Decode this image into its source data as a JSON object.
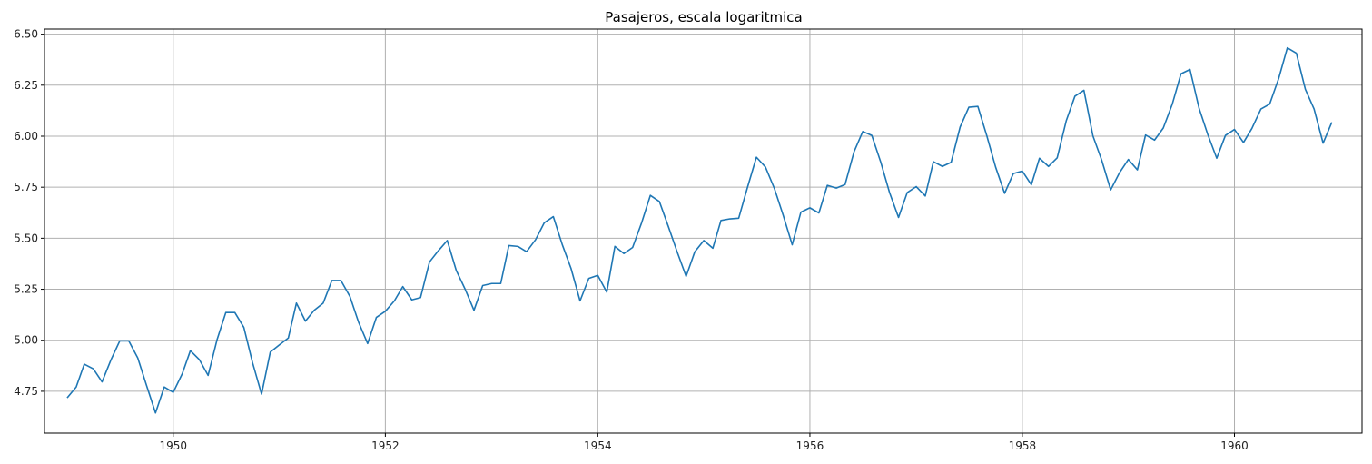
{
  "chart_data": {
    "type": "line",
    "title": "Pasajeros, escala logaritmica",
    "xlabel": "",
    "ylabel": "",
    "xlim": [
      "1948-10-15",
      "1961-03-15"
    ],
    "ylim": [
      4.545,
      6.525
    ],
    "x_ticks": [
      {
        "value": "1950-01-01",
        "label": "1950"
      },
      {
        "value": "1952-01-01",
        "label": "1952"
      },
      {
        "value": "1954-01-01",
        "label": "1954"
      },
      {
        "value": "1956-01-01",
        "label": "1956"
      },
      {
        "value": "1958-01-01",
        "label": "1958"
      },
      {
        "value": "1960-01-01",
        "label": "1960"
      }
    ],
    "y_ticks": [
      {
        "value": 4.75,
        "label": "4.75"
      },
      {
        "value": 5.0,
        "label": "5.00"
      },
      {
        "value": 5.25,
        "label": "5.25"
      },
      {
        "value": 5.5,
        "label": "5.50"
      },
      {
        "value": 5.75,
        "label": "5.75"
      },
      {
        "value": 6.0,
        "label": "6.00"
      },
      {
        "value": 6.25,
        "label": "6.25"
      },
      {
        "value": 6.5,
        "label": "6.50"
      }
    ],
    "grid": true,
    "line_color": "#1f77b4",
    "series": [
      {
        "x": [
          "1949-01-01",
          "1949-02-01",
          "1949-03-01",
          "1949-04-01",
          "1949-05-01",
          "1949-06-01",
          "1949-07-01",
          "1949-08-01",
          "1949-09-01",
          "1949-10-01",
          "1949-11-01",
          "1949-12-01",
          "1950-01-01",
          "1950-02-01",
          "1950-03-01",
          "1950-04-01",
          "1950-05-01",
          "1950-06-01",
          "1950-07-01",
          "1950-08-01",
          "1950-09-01",
          "1950-10-01",
          "1950-11-01",
          "1950-12-01",
          "1951-01-01",
          "1951-02-01",
          "1951-03-01",
          "1951-04-01",
          "1951-05-01",
          "1951-06-01",
          "1951-07-01",
          "1951-08-01",
          "1951-09-01",
          "1951-10-01",
          "1951-11-01",
          "1951-12-01",
          "1952-01-01",
          "1952-02-01",
          "1952-03-01",
          "1952-04-01",
          "1952-05-01",
          "1952-06-01",
          "1952-07-01",
          "1952-08-01",
          "1952-09-01",
          "1952-10-01",
          "1952-11-01",
          "1952-12-01",
          "1953-01-01",
          "1953-02-01",
          "1953-03-01",
          "1953-04-01",
          "1953-05-01",
          "1953-06-01",
          "1953-07-01",
          "1953-08-01",
          "1953-09-01",
          "1953-10-01",
          "1953-11-01",
          "1953-12-01",
          "1954-01-01",
          "1954-02-01",
          "1954-03-01",
          "1954-04-01",
          "1954-05-01",
          "1954-06-01",
          "1954-07-01",
          "1954-08-01",
          "1954-09-01",
          "1954-10-01",
          "1954-11-01",
          "1954-12-01",
          "1955-01-01",
          "1955-02-01",
          "1955-03-01",
          "1955-04-01",
          "1955-05-01",
          "1955-06-01",
          "1955-07-01",
          "1955-08-01",
          "1955-09-01",
          "1955-10-01",
          "1955-11-01",
          "1955-12-01",
          "1956-01-01",
          "1956-02-01",
          "1956-03-01",
          "1956-04-01",
          "1956-05-01",
          "1956-06-01",
          "1956-07-01",
          "1956-08-01",
          "1956-09-01",
          "1956-10-01",
          "1956-11-01",
          "1956-12-01",
          "1957-01-01",
          "1957-02-01",
          "1957-03-01",
          "1957-04-01",
          "1957-05-01",
          "1957-06-01",
          "1957-07-01",
          "1957-08-01",
          "1957-09-01",
          "1957-10-01",
          "1957-11-01",
          "1957-12-01",
          "1958-01-01",
          "1958-02-01",
          "1958-03-01",
          "1958-04-01",
          "1958-05-01",
          "1958-06-01",
          "1958-07-01",
          "1958-08-01",
          "1958-09-01",
          "1958-10-01",
          "1958-11-01",
          "1958-12-01",
          "1959-01-01",
          "1959-02-01",
          "1959-03-01",
          "1959-04-01",
          "1959-05-01",
          "1959-06-01",
          "1959-07-01",
          "1959-08-01",
          "1959-09-01",
          "1959-10-01",
          "1959-11-01",
          "1959-12-01",
          "1960-01-01",
          "1960-02-01",
          "1960-03-01",
          "1960-04-01",
          "1960-05-01",
          "1960-06-01",
          "1960-07-01",
          "1960-08-01",
          "1960-09-01",
          "1960-10-01",
          "1960-11-01",
          "1960-12-01"
        ],
        "y": [
          4.718,
          4.771,
          4.883,
          4.86,
          4.796,
          4.905,
          4.997,
          4.997,
          4.913,
          4.779,
          4.644,
          4.771,
          4.745,
          4.836,
          4.949,
          4.905,
          4.828,
          5.004,
          5.136,
          5.136,
          5.063,
          4.89,
          4.736,
          4.942,
          4.977,
          5.011,
          5.182,
          5.094,
          5.147,
          5.182,
          5.293,
          5.293,
          5.215,
          5.088,
          4.984,
          5.112,
          5.142,
          5.193,
          5.263,
          5.198,
          5.209,
          5.384,
          5.438,
          5.489,
          5.342,
          5.252,
          5.147,
          5.268,
          5.278,
          5.278,
          5.464,
          5.46,
          5.434,
          5.493,
          5.576,
          5.606,
          5.468,
          5.352,
          5.193,
          5.303,
          5.318,
          5.236,
          5.46,
          5.425,
          5.455,
          5.576,
          5.71,
          5.68,
          5.557,
          5.434,
          5.313,
          5.434,
          5.489,
          5.451,
          5.587,
          5.595,
          5.598,
          5.753,
          5.897,
          5.849,
          5.743,
          5.613,
          5.468,
          5.628,
          5.649,
          5.624,
          5.759,
          5.746,
          5.763,
          5.924,
          6.023,
          6.004,
          5.872,
          5.724,
          5.602,
          5.724,
          5.753,
          5.707,
          5.875,
          5.852,
          5.872,
          6.045,
          6.142,
          6.146,
          6.001,
          5.849,
          5.72,
          5.817,
          5.829,
          5.762,
          5.892,
          5.852,
          5.894,
          6.075,
          6.196,
          6.225,
          6.001,
          5.883,
          5.737,
          5.82,
          5.886,
          5.835,
          6.006,
          5.981,
          6.04,
          6.157,
          6.306,
          6.327,
          6.138,
          6.009,
          5.892,
          6.004,
          6.033,
          5.969,
          6.038,
          6.133,
          6.157,
          6.282,
          6.433,
          6.407,
          6.23,
          6.133,
          5.966,
          6.068
        ]
      }
    ]
  }
}
